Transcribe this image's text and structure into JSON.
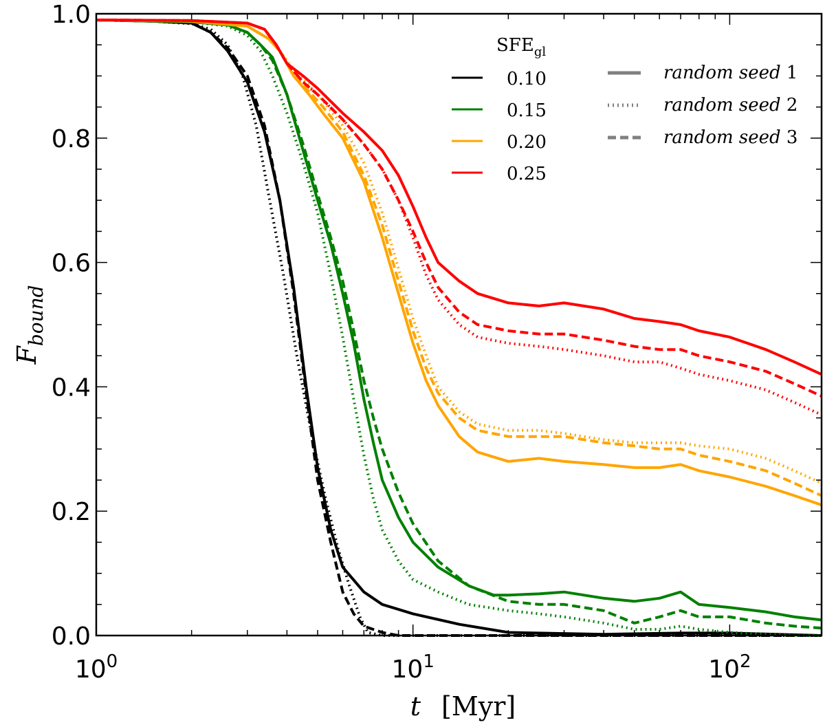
{
  "chart_data": {
    "type": "line",
    "title": "",
    "xlabel": "t",
    "xlabel_unit": "[Myr]",
    "ylabel": "F",
    "ylabel_sub": "bound",
    "xscale": "log",
    "xlim": [
      1,
      195
    ],
    "ylim": [
      0.0,
      1.0
    ],
    "x_tick_labels": [
      {
        "value": 1,
        "base": "10",
        "exp": "0"
      },
      {
        "value": 10,
        "base": "10",
        "exp": "1"
      },
      {
        "value": 100,
        "base": "10",
        "exp": "2"
      }
    ],
    "y_tick_labels": [
      "0.0",
      "0.2",
      "0.4",
      "0.6",
      "0.8",
      "1.0"
    ],
    "y_tick_values": [
      0.0,
      0.2,
      0.4,
      0.6,
      0.8,
      1.0
    ],
    "legend_sfe_title_main": "SFE",
    "legend_sfe_title_sub": "gl",
    "legend_seed_prefix": "random seed",
    "colors": {
      "0.10": "#000000",
      "0.15": "#008000",
      "0.20": "#FFA500",
      "0.25": "#FF0000",
      "seed_legend": "#808080"
    },
    "sfe_legend": [
      {
        "label": "0.10",
        "color": "#000000"
      },
      {
        "label": "0.15",
        "color": "#008000"
      },
      {
        "label": "0.20",
        "color": "#FFA500"
      },
      {
        "label": "0.25",
        "color": "#FF0000"
      }
    ],
    "seed_legend": [
      {
        "style": "solid",
        "number": "1"
      },
      {
        "style": "dotted",
        "number": "2"
      },
      {
        "style": "dashed",
        "number": "3"
      }
    ],
    "series": [
      {
        "name": "SFE 0.10 seed 1",
        "sfe": "0.10",
        "color": "#000000",
        "style": "solid",
        "x": [
          1,
          1.5,
          2.0,
          2.3,
          2.6,
          3.0,
          3.4,
          3.8,
          4.2,
          4.6,
          5.0,
          5.5,
          6.0,
          7.0,
          8.0,
          10,
          14,
          20,
          40,
          70,
          100,
          195
        ],
        "y": [
          0.99,
          0.988,
          0.985,
          0.97,
          0.94,
          0.89,
          0.81,
          0.7,
          0.56,
          0.4,
          0.27,
          0.17,
          0.11,
          0.07,
          0.05,
          0.035,
          0.018,
          0.005,
          0.002,
          0.004,
          0.004,
          0.0
        ]
      },
      {
        "name": "SFE 0.10 seed 2",
        "sfe": "0.10",
        "color": "#000000",
        "style": "dotted",
        "x": [
          1,
          1.5,
          2.0,
          2.3,
          2.6,
          2.9,
          3.2,
          3.5,
          3.9,
          4.3,
          4.8,
          5.3,
          5.8,
          6.3,
          6.8,
          7.2,
          8,
          195
        ],
        "y": [
          0.99,
          0.988,
          0.984,
          0.975,
          0.95,
          0.9,
          0.82,
          0.71,
          0.58,
          0.45,
          0.32,
          0.22,
          0.14,
          0.08,
          0.03,
          0.005,
          0.0,
          0.0
        ]
      },
      {
        "name": "SFE 0.10 seed 3",
        "sfe": "0.10",
        "color": "#000000",
        "style": "dashed",
        "x": [
          1,
          1.5,
          2.0,
          2.3,
          2.6,
          3.0,
          3.4,
          3.8,
          4.2,
          4.6,
          5.0,
          5.5,
          6.0,
          6.5,
          7.0,
          8.0,
          9.0,
          195
        ],
        "y": [
          0.99,
          0.988,
          0.985,
          0.97,
          0.945,
          0.9,
          0.82,
          0.7,
          0.55,
          0.39,
          0.25,
          0.15,
          0.07,
          0.035,
          0.015,
          0.005,
          0.0,
          0.0
        ]
      },
      {
        "name": "SFE 0.15 seed 1",
        "sfe": "0.15",
        "color": "#008000",
        "style": "solid",
        "x": [
          1,
          2.0,
          2.6,
          3.0,
          3.3,
          3.6,
          4.0,
          4.5,
          5.0,
          5.5,
          6.0,
          6.5,
          7.0,
          7.5,
          8.0,
          9.0,
          10,
          12,
          15,
          18,
          20,
          25,
          30,
          40,
          50,
          60,
          70,
          80,
          100,
          130,
          160,
          195
        ],
        "y": [
          0.99,
          0.987,
          0.982,
          0.97,
          0.95,
          0.93,
          0.87,
          0.78,
          0.7,
          0.63,
          0.55,
          0.47,
          0.38,
          0.31,
          0.25,
          0.19,
          0.15,
          0.11,
          0.08,
          0.065,
          0.065,
          0.067,
          0.07,
          0.06,
          0.055,
          0.06,
          0.07,
          0.05,
          0.045,
          0.038,
          0.03,
          0.025
        ]
      },
      {
        "name": "SFE 0.15 seed 2",
        "sfe": "0.15",
        "color": "#008000",
        "style": "dotted",
        "x": [
          1,
          2.0,
          2.6,
          3.0,
          3.3,
          3.6,
          4.0,
          4.5,
          5.0,
          5.5,
          6.0,
          6.5,
          7.0,
          7.5,
          8.0,
          9.0,
          10,
          12,
          15,
          20,
          25,
          30,
          40,
          50,
          60,
          70,
          80,
          100,
          130,
          160,
          195
        ],
        "y": [
          0.99,
          0.987,
          0.98,
          0.965,
          0.94,
          0.9,
          0.84,
          0.76,
          0.68,
          0.58,
          0.48,
          0.38,
          0.29,
          0.22,
          0.17,
          0.12,
          0.09,
          0.07,
          0.05,
          0.04,
          0.035,
          0.03,
          0.02,
          0.01,
          0.01,
          0.015,
          0.01,
          0.005,
          0.002,
          0.0,
          0.0
        ]
      },
      {
        "name": "SFE 0.15 seed 3",
        "sfe": "0.15",
        "color": "#008000",
        "style": "dashed",
        "x": [
          1,
          2.0,
          2.6,
          3.0,
          3.3,
          3.6,
          4.0,
          4.5,
          5.0,
          5.5,
          6.0,
          6.5,
          7.0,
          7.5,
          8.0,
          9.0,
          10,
          12,
          15,
          20,
          25,
          30,
          40,
          50,
          60,
          70,
          80,
          100,
          130,
          160,
          195
        ],
        "y": [
          0.99,
          0.987,
          0.982,
          0.97,
          0.95,
          0.925,
          0.87,
          0.79,
          0.71,
          0.64,
          0.57,
          0.49,
          0.41,
          0.35,
          0.3,
          0.23,
          0.18,
          0.12,
          0.08,
          0.055,
          0.05,
          0.05,
          0.04,
          0.02,
          0.03,
          0.04,
          0.03,
          0.03,
          0.02,
          0.015,
          0.012
        ]
      },
      {
        "name": "SFE 0.20 seed 1",
        "sfe": "0.20",
        "color": "#FFA500",
        "style": "solid",
        "x": [
          1,
          2.0,
          3.0,
          3.5,
          3.8,
          4.2,
          4.7,
          5.2,
          6.0,
          7.0,
          8.0,
          9.0,
          10,
          11,
          12,
          14,
          16,
          20,
          25,
          30,
          40,
          50,
          60,
          70,
          80,
          100,
          130,
          160,
          195
        ],
        "y": [
          0.99,
          0.988,
          0.98,
          0.96,
          0.94,
          0.9,
          0.87,
          0.84,
          0.8,
          0.73,
          0.64,
          0.55,
          0.47,
          0.41,
          0.37,
          0.32,
          0.295,
          0.28,
          0.285,
          0.28,
          0.275,
          0.27,
          0.27,
          0.275,
          0.265,
          0.255,
          0.24,
          0.225,
          0.21
        ]
      },
      {
        "name": "SFE 0.20 seed 2",
        "sfe": "0.20",
        "color": "#FFA500",
        "style": "dotted",
        "x": [
          1,
          2.0,
          3.0,
          3.5,
          3.8,
          4.2,
          4.7,
          5.2,
          6.0,
          7.0,
          8.0,
          9.0,
          10,
          11,
          12,
          14,
          16,
          20,
          25,
          30,
          40,
          50,
          60,
          70,
          80,
          100,
          130,
          160,
          195
        ],
        "y": [
          0.99,
          0.988,
          0.98,
          0.96,
          0.94,
          0.91,
          0.885,
          0.86,
          0.82,
          0.76,
          0.68,
          0.59,
          0.51,
          0.45,
          0.4,
          0.36,
          0.34,
          0.33,
          0.33,
          0.325,
          0.315,
          0.31,
          0.31,
          0.31,
          0.305,
          0.3,
          0.285,
          0.265,
          0.245
        ]
      },
      {
        "name": "SFE 0.20 seed 3",
        "sfe": "0.20",
        "color": "#FFA500",
        "style": "dashed",
        "x": [
          1,
          2.0,
          3.0,
          3.5,
          3.8,
          4.2,
          4.7,
          5.2,
          6.0,
          7.0,
          8.0,
          9.0,
          10,
          11,
          12,
          14,
          16,
          20,
          25,
          30,
          40,
          50,
          60,
          70,
          80,
          100,
          130,
          160,
          195
        ],
        "y": [
          0.99,
          0.988,
          0.98,
          0.96,
          0.94,
          0.9,
          0.875,
          0.85,
          0.81,
          0.74,
          0.66,
          0.57,
          0.49,
          0.43,
          0.39,
          0.35,
          0.33,
          0.32,
          0.32,
          0.32,
          0.31,
          0.305,
          0.3,
          0.3,
          0.29,
          0.28,
          0.265,
          0.245,
          0.225
        ]
      },
      {
        "name": "SFE 0.25 seed 1",
        "sfe": "0.25",
        "color": "#FF0000",
        "style": "solid",
        "x": [
          1,
          2.0,
          3.0,
          3.4,
          3.7,
          4.0,
          4.5,
          5.0,
          6.0,
          7.0,
          8.0,
          9.0,
          10,
          11,
          12,
          14,
          16,
          20,
          25,
          30,
          40,
          50,
          60,
          70,
          80,
          100,
          130,
          160,
          195
        ],
        "y": [
          0.99,
          0.989,
          0.985,
          0.975,
          0.95,
          0.92,
          0.9,
          0.88,
          0.84,
          0.81,
          0.78,
          0.74,
          0.69,
          0.64,
          0.6,
          0.57,
          0.55,
          0.535,
          0.53,
          0.535,
          0.525,
          0.51,
          0.505,
          0.5,
          0.49,
          0.48,
          0.46,
          0.44,
          0.42
        ]
      },
      {
        "name": "SFE 0.25 seed 2",
        "sfe": "0.25",
        "color": "#FF0000",
        "style": "dotted",
        "x": [
          1,
          2.0,
          3.0,
          3.4,
          3.7,
          4.0,
          4.5,
          5.0,
          6.0,
          7.0,
          8.0,
          9.0,
          10,
          11,
          12,
          14,
          16,
          20,
          25,
          30,
          40,
          50,
          60,
          70,
          80,
          100,
          130,
          160,
          195
        ],
        "y": [
          0.99,
          0.989,
          0.985,
          0.975,
          0.95,
          0.92,
          0.89,
          0.87,
          0.83,
          0.79,
          0.75,
          0.7,
          0.64,
          0.58,
          0.54,
          0.5,
          0.48,
          0.47,
          0.465,
          0.46,
          0.45,
          0.44,
          0.44,
          0.43,
          0.42,
          0.41,
          0.395,
          0.375,
          0.355
        ]
      },
      {
        "name": "SFE 0.25 seed 3",
        "sfe": "0.25",
        "color": "#FF0000",
        "style": "dashed",
        "x": [
          1,
          2.0,
          3.0,
          3.4,
          3.7,
          4.0,
          4.5,
          5.0,
          6.0,
          7.0,
          8.0,
          9.0,
          10,
          11,
          12,
          14,
          16,
          20,
          25,
          30,
          40,
          50,
          60,
          70,
          80,
          100,
          130,
          160,
          195
        ],
        "y": [
          0.99,
          0.989,
          0.985,
          0.975,
          0.95,
          0.92,
          0.89,
          0.87,
          0.83,
          0.79,
          0.75,
          0.7,
          0.65,
          0.6,
          0.56,
          0.52,
          0.5,
          0.49,
          0.485,
          0.485,
          0.475,
          0.465,
          0.46,
          0.46,
          0.45,
          0.44,
          0.425,
          0.405,
          0.385
        ]
      }
    ]
  }
}
